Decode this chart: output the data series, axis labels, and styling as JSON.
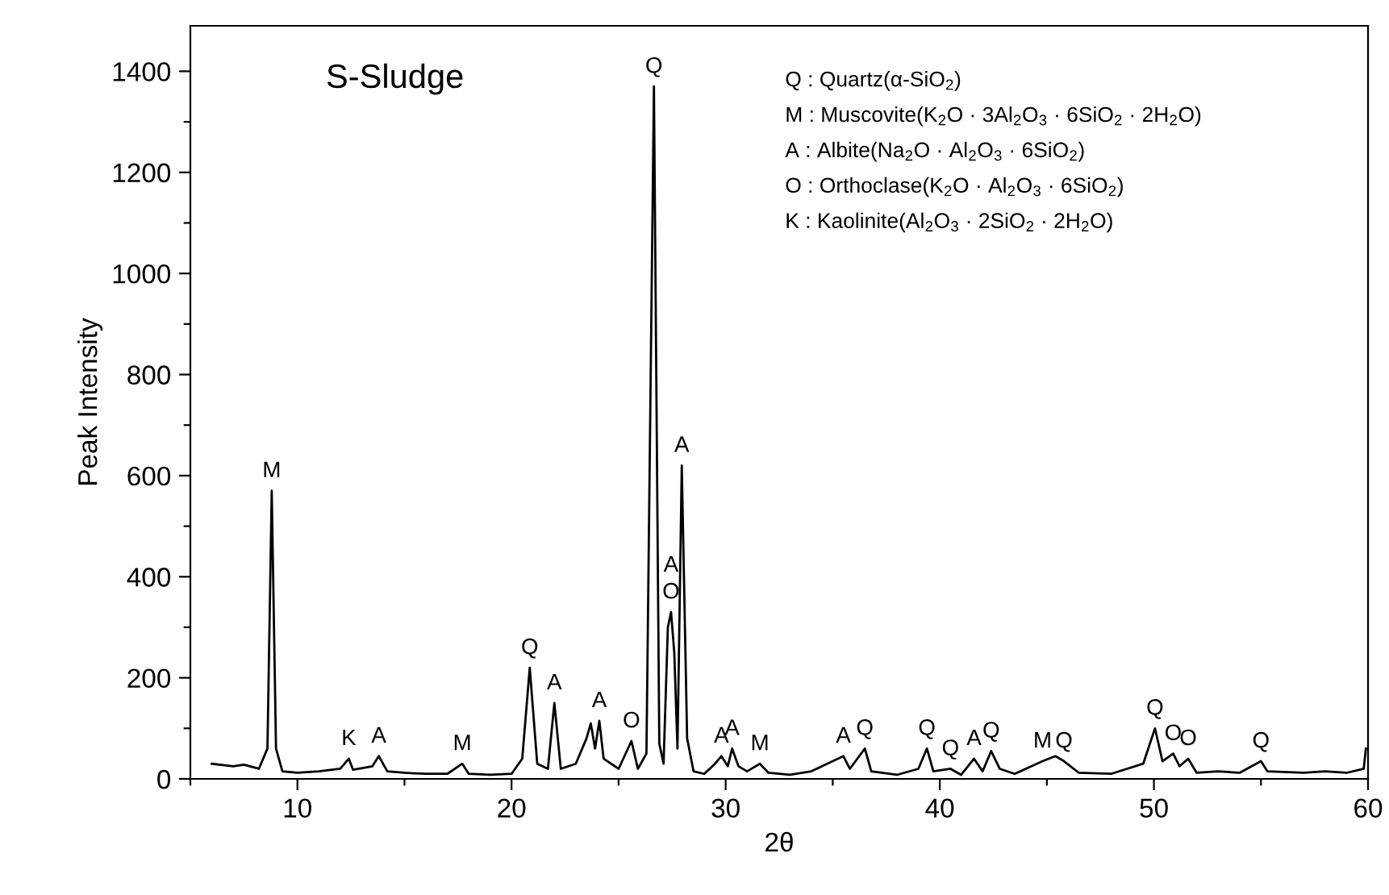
{
  "chart_data": {
    "type": "line",
    "title": "S-Sludge",
    "xlabel": "2θ",
    "ylabel": "Peak Intensity",
    "x": [
      6,
      7,
      7.5,
      8.2,
      8.6,
      8.8,
      9.0,
      9.3,
      10,
      11,
      12,
      12.4,
      12.6,
      13.5,
      13.8,
      14.2,
      15,
      16,
      17,
      17.7,
      18,
      19,
      20,
      20.5,
      20.85,
      21.2,
      21.7,
      22.0,
      22.3,
      23,
      23.5,
      23.7,
      23.9,
      24.1,
      24.3,
      25,
      25.6,
      25.9,
      26.3,
      26.65,
      26.9,
      27.1,
      27.3,
      27.45,
      27.6,
      27.75,
      27.95,
      28.2,
      28.5,
      29,
      29.5,
      29.8,
      30.1,
      30.3,
      30.6,
      31,
      31.6,
      32,
      33,
      34,
      35,
      35.5,
      35.8,
      36.5,
      36.8,
      38,
      39,
      39.4,
      39.7,
      40.5,
      41,
      41.6,
      42,
      42.4,
      42.8,
      43.5,
      44.8,
      45.4,
      45.8,
      46.5,
      48,
      49.5,
      50.05,
      50.4,
      50.9,
      51.2,
      51.6,
      52,
      53,
      54,
      55,
      55.3,
      57,
      58,
      59,
      59.8,
      59.9
    ],
    "series": [
      {
        "color": "#000000",
        "values": [
          30,
          25,
          28,
          20,
          60,
          570,
          60,
          15,
          12,
          15,
          20,
          40,
          18,
          25,
          45,
          15,
          12,
          10,
          10,
          30,
          10,
          8,
          10,
          40,
          220,
          30,
          20,
          150,
          20,
          30,
          80,
          110,
          60,
          115,
          40,
          20,
          75,
          20,
          50,
          1370,
          70,
          30,
          300,
          330,
          250,
          60,
          620,
          80,
          15,
          10,
          30,
          45,
          25,
          60,
          25,
          15,
          30,
          12,
          8,
          15,
          35,
          45,
          20,
          60,
          15,
          8,
          20,
          60,
          15,
          20,
          8,
          40,
          15,
          55,
          20,
          10,
          35,
          45,
          35,
          12,
          10,
          30,
          100,
          35,
          50,
          25,
          40,
          12,
          15,
          12,
          35,
          15,
          12,
          15,
          12,
          20,
          60
        ]
      }
    ],
    "xlim": [
      5,
      60
    ],
    "ylim": [
      0,
      1490
    ],
    "xticks": [
      {
        "value": 5,
        "label": null
      },
      10,
      {
        "value": 15,
        "label": null
      },
      20,
      {
        "value": 25,
        "label": null
      },
      30,
      {
        "value": 35,
        "label": null
      },
      40,
      {
        "value": 45,
        "label": null
      },
      50,
      {
        "value": 55,
        "label": null
      },
      60
    ],
    "yticks": [
      0,
      {
        "value": 100,
        "label": null
      },
      200,
      {
        "value": 300,
        "label": null
      },
      400,
      {
        "value": 500,
        "label": null
      },
      600,
      {
        "value": 700,
        "label": null
      },
      800,
      {
        "value": 900,
        "label": null
      },
      1000,
      {
        "value": 1100,
        "label": null
      },
      1200,
      {
        "value": 1300,
        "label": null
      },
      1400
    ],
    "grid": false,
    "legend": false,
    "marker": "none",
    "line_style": "solid",
    "annotations": [
      "Q : Quartz(α-SiO$_{2}$)",
      "M : Muscovite(K$_{2}$O · 3Al$_{2}$O$_{3}$ · 6SiO$_{2}$ · 2H$_{2}$O)",
      "A : Albite(Na$_{2}$O · Al$_{2}$O$_{3}$ · 6SiO$_{2}$)",
      "O : Orthoclase(K$_{2}$O · Al$_{2}$O$_{3}$ · 6SiO$_{2}$)",
      "K : Kaolinite(Al$_{2}$O$_{3}$ · 2SiO$_{2}$ · 2H$_{2}$O)",
      {
        "text": "M",
        "x": 8.8,
        "y": 570
      },
      {
        "text": "K",
        "x": 12.4,
        "y": 40
      },
      {
        "text": "A",
        "x": 13.8,
        "y": 45
      },
      {
        "text": "M",
        "x": 17.7,
        "y": 30
      },
      {
        "text": "Q",
        "x": 20.85,
        "y": 220
      },
      {
        "text": "A",
        "x": 22.0,
        "y": 150
      },
      {
        "text": "A",
        "x": 24.1,
        "y": 115
      },
      {
        "text": "O",
        "x": 25.6,
        "y": 75
      },
      {
        "text": "Q",
        "x": 26.65,
        "y": 1370
      },
      {
        "text": "A",
        "x": 27.95,
        "y": 620
      },
      {
        "text": "O",
        "x": 27.45,
        "y": 330
      },
      {
        "text": "A",
        "x": 27.45,
        "y": 330
      },
      {
        "text": "A",
        "x": 29.8,
        "y": 45
      },
      {
        "text": "A",
        "x": 30.3,
        "y": 60
      },
      {
        "text": "M",
        "x": 31.6,
        "y": 30
      },
      {
        "text": "A",
        "x": 35.5,
        "y": 45
      },
      {
        "text": "Q",
        "x": 36.5,
        "y": 60
      },
      {
        "text": "Q",
        "x": 39.4,
        "y": 60
      },
      {
        "text": "Q",
        "x": 40.5,
        "y": 20
      },
      {
        "text": "A",
        "x": 41.6,
        "y": 40
      },
      {
        "text": "Q",
        "x": 42.4,
        "y": 55
      },
      {
        "text": "M",
        "x": 44.8,
        "y": 35
      },
      {
        "text": "Q",
        "x": 45.8,
        "y": 35
      },
      {
        "text": "Q",
        "x": 50.05,
        "y": 100
      },
      {
        "text": "O",
        "x": 50.9,
        "y": 50
      },
      {
        "text": "O",
        "x": 51.6,
        "y": 40
      },
      {
        "text": "Q",
        "x": 55,
        "y": 35
      }
    ]
  }
}
